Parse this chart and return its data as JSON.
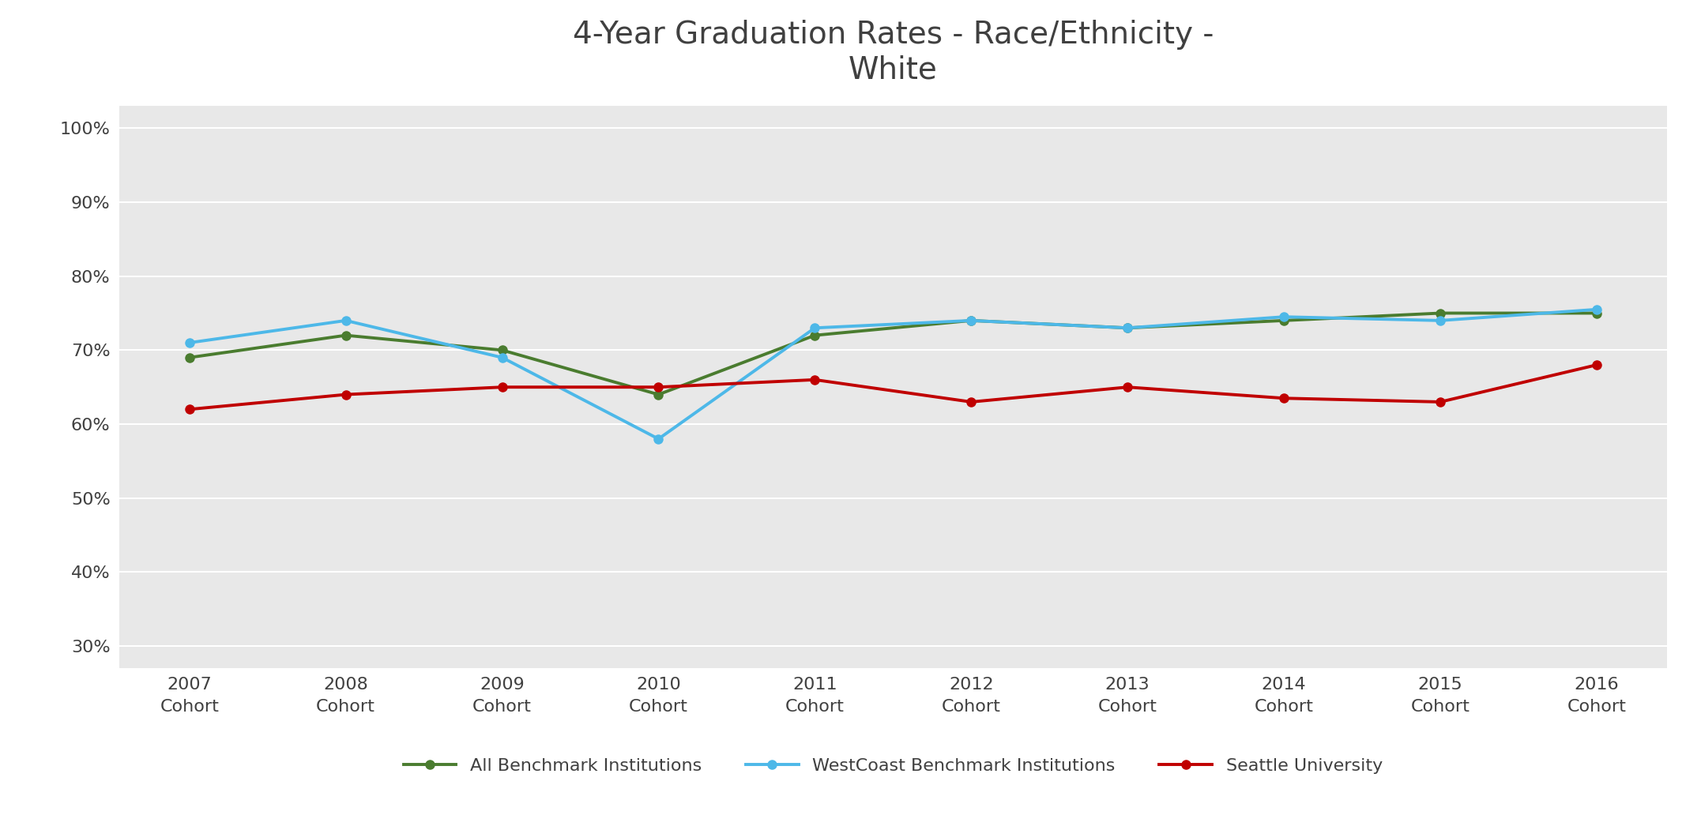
{
  "title": "4-Year Graduation Rates - Race/Ethnicity -\nWhite",
  "cohorts": [
    "2007\nCohort",
    "2008\nCohort",
    "2009\nCohort",
    "2010\nCohort",
    "2011\nCohort",
    "2012\nCohort",
    "2013\nCohort",
    "2014\nCohort",
    "2015\nCohort",
    "2016\nCohort"
  ],
  "series": [
    {
      "label": "All Benchmark Institutions",
      "color": "#4a7c2f",
      "values": [
        0.69,
        0.72,
        0.7,
        0.64,
        0.72,
        0.74,
        0.73,
        0.74,
        0.75,
        0.75
      ],
      "marker": "o",
      "linewidth": 2.8,
      "markersize": 9
    },
    {
      "label": "WestCoast Benchmark Institutions",
      "color": "#4db8e8",
      "values": [
        0.71,
        0.74,
        0.69,
        0.58,
        0.73,
        0.74,
        0.73,
        0.745,
        0.74,
        0.755
      ],
      "marker": "o",
      "linewidth": 2.8,
      "markersize": 9
    },
    {
      "label": "Seattle University",
      "color": "#c00000",
      "values": [
        0.62,
        0.64,
        0.65,
        0.65,
        0.66,
        0.63,
        0.65,
        0.635,
        0.63,
        0.68
      ],
      "marker": "o",
      "linewidth": 2.8,
      "markersize": 9
    }
  ],
  "ylim": [
    0.27,
    1.03
  ],
  "yticks": [
    0.3,
    0.4,
    0.5,
    0.6,
    0.7,
    0.8,
    0.9,
    1.0
  ],
  "ytick_labels": [
    "30%",
    "40%",
    "50%",
    "60%",
    "70%",
    "80%",
    "90%",
    "100%"
  ],
  "fig_background_color": "#ffffff",
  "plot_background_color": "#e8e8e8",
  "grid_color": "#ffffff",
  "title_fontsize": 28,
  "legend_fontsize": 16,
  "tick_fontsize": 16,
  "title_color": "#404040",
  "tick_color": "#404040"
}
